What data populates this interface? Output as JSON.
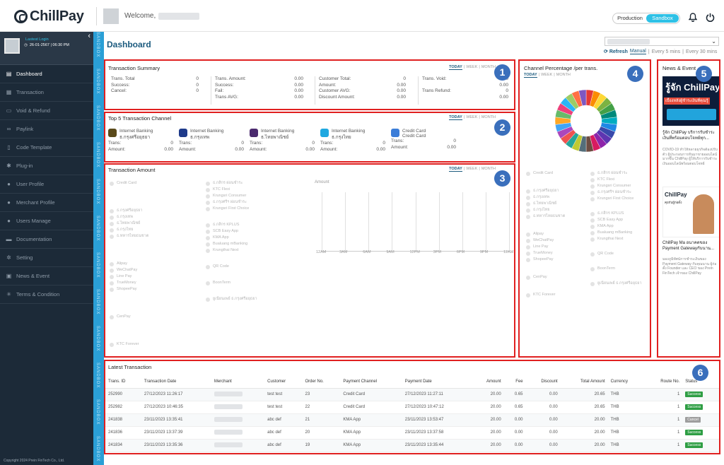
{
  "app": {
    "brand": "ChillPay",
    "welcome": "Welcome,"
  },
  "env": {
    "production": "Production",
    "sandbox": "Sandbox"
  },
  "sidebar": {
    "latest_login_label": "Lastest Login",
    "latest_login_value": "26-01-2567 | 06:30 PM",
    "items": [
      {
        "label": "Dashboard",
        "icon": "chart-icon"
      },
      {
        "label": "Transaction",
        "icon": "document-icon"
      },
      {
        "label": "Void & Refund",
        "icon": "card-icon"
      },
      {
        "label": "Paylink",
        "icon": "link-icon"
      },
      {
        "label": "Code Template",
        "icon": "file-icon"
      },
      {
        "label": "Plug-in",
        "icon": "gear-icon"
      },
      {
        "label": "User Profile",
        "icon": "user-icon"
      },
      {
        "label": "Merchant Profile",
        "icon": "users-icon"
      },
      {
        "label": "Users Manage",
        "icon": "users-icon"
      },
      {
        "label": "Documentation",
        "icon": "folder-icon"
      },
      {
        "label": "Setting",
        "icon": "gears-icon"
      },
      {
        "label": "News & Event",
        "icon": "news-icon"
      },
      {
        "label": "Terms & Condition",
        "icon": "asterisk-icon"
      }
    ],
    "copyright": "Copyright 2024 Prein FinTech Co., Ltd."
  },
  "strip_label": "SANDBOX",
  "page": {
    "title": "Dashboard",
    "refresh": "Refresh",
    "refresh_modes": [
      "Manual",
      "Every 5 mins",
      "Every 30 mins"
    ]
  },
  "filters": {
    "today": "TODAY",
    "week": "WEEK",
    "month": "MONTH"
  },
  "badges": [
    "1",
    "2",
    "3",
    "4",
    "5",
    "6"
  ],
  "summary": {
    "title": "Transaction Summary",
    "col1": [
      {
        "label": "Trans. Total",
        "value": "0"
      },
      {
        "label": "Success:",
        "value": "0"
      },
      {
        "label": "Cancel:",
        "value": "0"
      }
    ],
    "col2": [
      {
        "label": "Trans. Amount:",
        "value": "0.00"
      },
      {
        "label": "Success:",
        "value": "0.00"
      },
      {
        "label": "Fail:",
        "value": "0.00"
      },
      {
        "label": "Trans AVG:",
        "value": "0.00"
      }
    ],
    "col3": [
      {
        "label": "Customer Total:",
        "value": "0"
      },
      {
        "label": "Amount:",
        "value": "0.00"
      },
      {
        "label": "Customer AVG:",
        "value": "0.00"
      },
      {
        "label": "Discount Amount:",
        "value": "0.00"
      }
    ],
    "col4": [
      {
        "label": "Trans. Void:",
        "value": "0"
      },
      {
        "label": "",
        "value": "0.00"
      },
      {
        "label": "Trans Refund:",
        "value": "0"
      },
      {
        "label": "",
        "value": "0.00"
      }
    ]
  },
  "top5": {
    "title": "Top 5 Transaction Channel",
    "trans_label": "Trans:",
    "amount_label": "Amount:",
    "channels": [
      {
        "name": "Internet Banking",
        "bank": "ธ.กรุงศรีอยุธยา",
        "trans": "0",
        "amount": "0.00",
        "color": "#5a4a1a"
      },
      {
        "name": "Internet Banking",
        "bank": "ธ.กรุงเทพ",
        "trans": "0",
        "amount": "0.00",
        "color": "#1e3a8a"
      },
      {
        "name": "Internet Banking",
        "bank": "ธ.ไทยพาณิชย์",
        "trans": "0",
        "amount": "0.00",
        "color": "#4b2a6e"
      },
      {
        "name": "Internet Banking",
        "bank": "ธ.กรุงไทย",
        "trans": "0",
        "amount": "0.00",
        "color": "#1fa8e0"
      },
      {
        "name": "Credit Card",
        "bank": "Credit Card",
        "trans": "0",
        "amount": "0.00",
        "color": "#3b7dd8"
      }
    ]
  },
  "amount": {
    "title": "Transaction Amount",
    "chart_title": "Amount",
    "legend_col1": [
      "Credit Card",
      "ธ.กรุงศรีอยุธยา",
      "ธ.กรุงเทพ",
      "ธ.ไทยพาณิชย์",
      "ธ.กรุงไทย",
      "ธ.ทหารไทยธนชาต",
      "Alipay",
      "WeChatPay",
      "Line Pay",
      "TrueMoney",
      "ShopeePay",
      "CenPay",
      "KTC Forever"
    ],
    "legend_col2": [
      "ธ.กสิกร ผ่อนชำระ",
      "KTC Flexi",
      "Krungsri Consumer",
      "ธ.กรุงศรีฯ ผ่อนชำระ",
      "Krungsri First Choice",
      "ธ.กสิกร KPLUS",
      "SCB Easy App",
      "KMA App",
      "Bualuang mBanking",
      "Krungthai Next",
      "QR Code",
      "BoonTerm",
      "ยูเนียนเพย์ ธ.กรุงศรีอยุธยา"
    ],
    "x_ticks": [
      "12AM",
      "3AM",
      "6AM",
      "9AM",
      "12PM",
      "3PM",
      "6PM",
      "9PM",
      "12AM"
    ]
  },
  "channel_pct": {
    "title": "Channel Percentage /per trans.",
    "legend_col1": [
      "Credit Card",
      "ธ.กรุงศรีอยุธยา",
      "ธ.กรุงเทพ",
      "ธ.ไทยพาณิชย์",
      "ธ.กรุงไทย",
      "ธ.ทหารไทยธนชาต",
      "Alipay",
      "WeChatPay",
      "Line Pay",
      "TrueMoney",
      "ShopeePay",
      "CenPay",
      "KTC Forever"
    ],
    "legend_col2": [
      "ธ.กสิกร ผ่อนชำระ",
      "KTC Flexi",
      "Krungsri Consumer",
      "ธ.กรุงศรีฯ ผ่อนชำระ",
      "Krungsri First Choice",
      "ธ.กสิกร KPLUS",
      "SCB Easy App",
      "KMA App",
      "Bualuang mBanking",
      "Krungthai Next",
      "QR Code",
      "BoonTerm",
      "ยูเนียนเพย์ ธ.กรุงศรีอยุธยา"
    ],
    "donut_colors": [
      "#e53935",
      "#fb8c00",
      "#fdd835",
      "#7cb342",
      "#43a047",
      "#00897b",
      "#00acc1",
      "#1e88e5",
      "#3949ab",
      "#5e35b1",
      "#8e24aa",
      "#d81b60",
      "#6d4c41",
      "#546e7a",
      "#c0ca33",
      "#26a69a",
      "#ef5350",
      "#ab47bc",
      "#42a5f5",
      "#ffa726",
      "#66bb6a",
      "#ec407a",
      "#29b6f6",
      "#9ccc65",
      "#ff7043",
      "#7e57c2"
    ]
  },
  "news": {
    "title": "News & Event",
    "items": [
      {
        "image_text": "รู้จัก ChillPay",
        "image_sub": "เบื้องหลังผู้ชำระเงินที่คุณรู้",
        "headline": "รู้จัก ChillPay บริการรับชำระเงินที่พร้อมตอบโจทย์ทุก...",
        "desc": "COVID-19 ทำให้หลายธุรกิจต้องปรับตัว ผู้ประกอบการหันมาขายออนไลน์มากขึ้น ChillPay ผู้ให้บริการรับชำระเงินออนไลน์พร้อมตอบโจทย์"
      },
      {
        "image_text": "ChillPay",
        "image_sub": "คุยกับผู้ก่อตั้ง",
        "headline": "ChillPay Ma อนาคตของ Payment Gatewayกับนาน...",
        "desc": "มองภูมิทัศน์การชำระเงินของ Payment Gateway กับคุณนาน ผู้ก่อตั้ง Founder และ CEO ของ Prein FinTech เจ้าของ ChillPay"
      }
    ]
  },
  "latest": {
    "title": "Latest Transaction",
    "columns": [
      "Trans. ID",
      "Transaction Date",
      "Merchant",
      "Customer",
      "Order No.",
      "Payment Channel",
      "Payment Date",
      "Amount",
      "Fee",
      "Discount",
      "Total Amount",
      "Currency",
      "Route No.",
      "Status"
    ],
    "rows": [
      {
        "id": "252990",
        "date": "27/12/2023 11:26:17",
        "customer": "test test",
        "order": "23",
        "channel": "Credit Card",
        "pay_date": "27/12/2023 11:27:11",
        "amount": "20.00",
        "fee": "0.65",
        "discount": "0.00",
        "total": "20.65",
        "currency": "THB",
        "route": "1",
        "status": "Success",
        "status_color": "#2e9e44"
      },
      {
        "id": "252982",
        "date": "27/12/2023 10:46:35",
        "customer": "test test",
        "order": "22",
        "channel": "Credit Card",
        "pay_date": "27/12/2023 10:47:12",
        "amount": "20.00",
        "fee": "0.65",
        "discount": "0.00",
        "total": "20.65",
        "currency": "THB",
        "route": "1",
        "status": "Success",
        "status_color": "#2e9e44"
      },
      {
        "id": "241838",
        "date": "23/11/2023 13:35:41",
        "customer": "abc def",
        "order": "21",
        "channel": "KMA App",
        "pay_date": "23/11/2023 13:53:47",
        "amount": "20.00",
        "fee": "0.00",
        "discount": "0.00",
        "total": "20.00",
        "currency": "THB",
        "route": "1",
        "status": "Cancel",
        "status_color": "#9e9e9e"
      },
      {
        "id": "241836",
        "date": "23/11/2023 13:37:39",
        "customer": "abc def",
        "order": "20",
        "channel": "KMA App",
        "pay_date": "23/11/2023 13:37:58",
        "amount": "20.00",
        "fee": "0.00",
        "discount": "0.00",
        "total": "20.00",
        "currency": "THB",
        "route": "1",
        "status": "Success",
        "status_color": "#2e9e44"
      },
      {
        "id": "241834",
        "date": "23/11/2023 13:35:36",
        "customer": "abc def",
        "order": "19",
        "channel": "KMA App",
        "pay_date": "23/11/2023 13:35:44",
        "amount": "20.00",
        "fee": "0.00",
        "discount": "0.00",
        "total": "20.00",
        "currency": "THB",
        "route": "1",
        "status": "Success",
        "status_color": "#2e9e44"
      }
    ]
  }
}
